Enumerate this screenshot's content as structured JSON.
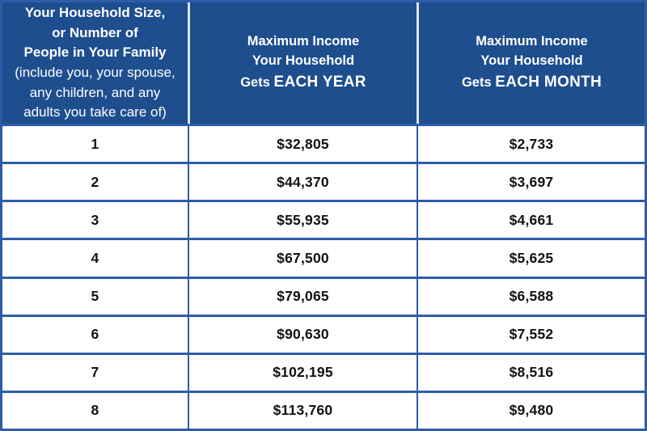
{
  "colors": {
    "header_bg": "#1e4e8e",
    "grid_blue": "#2d5ca8",
    "header_divider": "#d9e5f1",
    "header_text": "#ffffff",
    "body_text": "#121212"
  },
  "header": {
    "household": {
      "title_lines": [
        "Your Household Size,",
        "or Number of",
        "People in Your Family"
      ],
      "note_lines": [
        "(include you, your spouse,",
        "any children, and any",
        "adults you take care of)"
      ]
    },
    "year": {
      "line1": "Maximum Income",
      "line2": "Your Household",
      "line3_prefix": "Gets",
      "line3_emph": "EACH YEAR"
    },
    "month": {
      "line1": "Maximum Income",
      "line2": "Your Household",
      "line3_prefix": "Gets",
      "line3_emph": "EACH MONTH"
    }
  },
  "rows": [
    {
      "size": "1",
      "year": "$32,805",
      "month": "$2,733"
    },
    {
      "size": "2",
      "year": "$44,370",
      "month": "$3,697"
    },
    {
      "size": "3",
      "year": "$55,935",
      "month": "$4,661"
    },
    {
      "size": "4",
      "year": "$67,500",
      "month": "$5,625"
    },
    {
      "size": "5",
      "year": "$79,065",
      "month": "$6,588"
    },
    {
      "size": "6",
      "year": "$90,630",
      "month": "$7,552"
    },
    {
      "size": "7",
      "year": "$102,195",
      "month": "$8,516"
    },
    {
      "size": "8",
      "year": "$113,760",
      "month": "$9,480"
    }
  ]
}
